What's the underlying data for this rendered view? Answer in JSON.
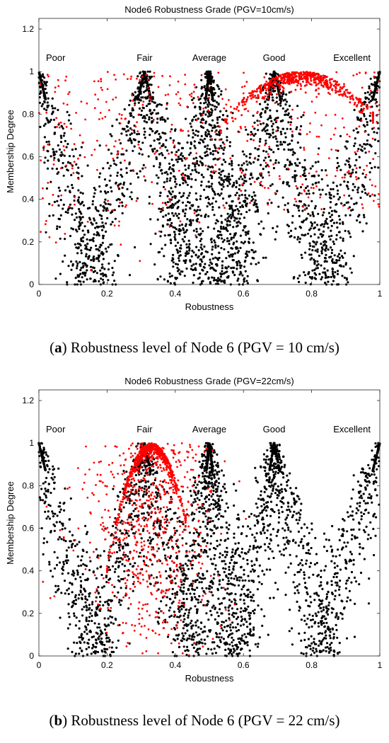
{
  "chart_data": [
    {
      "type": "scatter",
      "title": "Node6 Robustness Grade (PGV=10cm/s)",
      "xlabel": "Robustness",
      "ylabel": "Membership Degree",
      "xlim": [
        0,
        1
      ],
      "ylim": [
        0,
        1.25
      ],
      "xticks": [
        "0",
        "0.2",
        "0.4",
        "0.6",
        "0.8",
        "1"
      ],
      "yticks": [
        "0",
        "0.2",
        "0.4",
        "0.6",
        "0.8",
        "1",
        "1.2"
      ],
      "grid": false,
      "grade_labels": [
        "Poor",
        "Fair",
        "Average",
        "Good",
        "Excellent"
      ],
      "grade_centers": [
        0,
        0.31,
        0.5,
        0.69,
        1
      ],
      "series": [
        {
          "color": "#000000",
          "marker": "dot",
          "curves": [
            {
              "center": 0,
              "peak_y": 1,
              "zero_at": 0.2
            },
            {
              "center": 0.31,
              "peak_y": 1,
              "zero_range": [
                0.1,
                0.5
              ]
            },
            {
              "center": 0.5,
              "peak_y": 1,
              "zero_range": [
                0.39,
                0.6
              ]
            },
            {
              "center": 0.69,
              "peak_y": 1,
              "zero_range": [
                0.52,
                0.88
              ]
            },
            {
              "center": 1,
              "peak_y": 1,
              "zero_at": 0.79
            }
          ]
        },
        {
          "color": "#ff0000",
          "marker": "dot",
          "cluster": {
            "x_center": 0.77,
            "y_center": 0.99,
            "x_range": [
              0.53,
              0.98
            ],
            "y_range": [
              0.78,
              1.0
            ]
          },
          "scatter": {
            "x_range": [
              0,
              1
            ],
            "y_range": [
              0,
              1
            ]
          }
        }
      ],
      "caption": {
        "label": "a",
        "text": ") Robustness level of Node 6 (PGV = 10 cm/s)"
      }
    },
    {
      "type": "scatter",
      "title": "Node6 Robustness Grade (PGV=22cm/s)",
      "xlabel": "Robustness",
      "ylabel": "Membership Degree",
      "xlim": [
        0,
        1
      ],
      "ylim": [
        0,
        1.25
      ],
      "xticks": [
        "0",
        "0.2",
        "0.4",
        "0.6",
        "0.8",
        "1"
      ],
      "yticks": [
        "0",
        "0.2",
        "0.4",
        "0.6",
        "0.8",
        "1",
        "1.2"
      ],
      "grid": false,
      "grade_labels": [
        "Poor",
        "Fair",
        "Average",
        "Good",
        "Excellent"
      ],
      "grade_centers": [
        0,
        0.31,
        0.5,
        0.69,
        1
      ],
      "series": [
        {
          "color": "#000000",
          "marker": "dot",
          "curves": [
            {
              "center": 0,
              "peak_y": 1,
              "zero_at": 0.2
            },
            {
              "center": 0.31,
              "peak_y": 1,
              "zero_range": [
                0.13,
                0.48
              ]
            },
            {
              "center": 0.5,
              "peak_y": 1,
              "zero_range": [
                0.41,
                0.6
              ]
            },
            {
              "center": 0.69,
              "peak_y": 1,
              "zero_range": [
                0.55,
                0.86
              ]
            },
            {
              "center": 1,
              "peak_y": 1,
              "zero_at": 0.79
            }
          ]
        },
        {
          "color": "#ff0000",
          "marker": "dot",
          "cluster": {
            "x_center": 0.33,
            "y_center": 0.95,
            "x_range": [
              0.2,
              0.43
            ],
            "y_range": [
              0.55,
              1.0
            ]
          },
          "scatter": {
            "x_range": [
              0,
              0.55
            ],
            "y_range": [
              0,
              1
            ]
          }
        }
      ],
      "caption": {
        "label": "b",
        "text": ") Robustness level of Node 6 (PGV = 22 cm/s)"
      }
    }
  ]
}
